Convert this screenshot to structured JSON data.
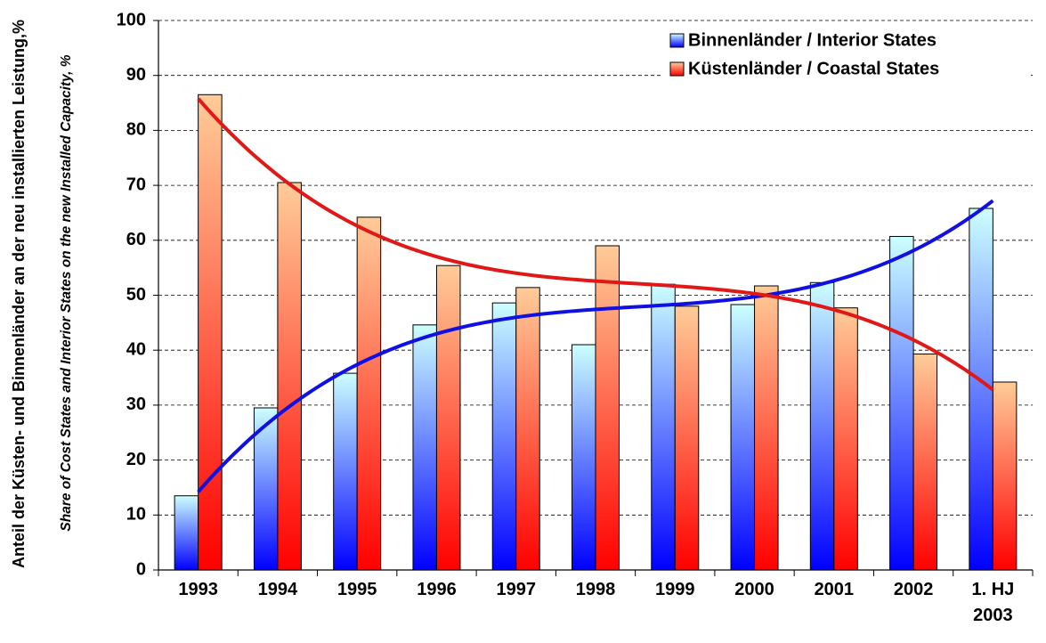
{
  "chart_data": {
    "type": "bar",
    "y_label": "Anteil der Küsten- und Binnenländer an der neu installierten Leistung,%",
    "y_sublabel": "Share of Cost States and Interior States on the new Installed Capacity, %",
    "categories": [
      "1993",
      "1994",
      "1995",
      "1996",
      "1997",
      "1998",
      "1999",
      "2000",
      "2001",
      "2002",
      "1. HJ 2003"
    ],
    "series": [
      {
        "name": "Binnenländer / Interior States",
        "color": "#0000ff",
        "gradient_top": "#ccffff",
        "trend_color": "#1010e0",
        "values": [
          13.5,
          29.5,
          35.8,
          44.6,
          48.6,
          41,
          52,
          48.3,
          52.3,
          60.7,
          65.8
        ]
      },
      {
        "name": "Küstenländer / Coastal States",
        "color": "#ff0000",
        "gradient_top": "#ffcc99",
        "trend_color": "#e01818",
        "values": [
          86.5,
          70.5,
          64.2,
          55.4,
          51.4,
          59,
          48,
          51.7,
          47.7,
          39.3,
          34.2
        ]
      }
    ],
    "trendline": {
      "type": "polynomial",
      "order": 3
    },
    "ylim": [
      0,
      100
    ],
    "yticks": [
      0,
      10,
      20,
      30,
      40,
      50,
      60,
      70,
      80,
      90,
      100
    ],
    "grid": true,
    "legend": "upper right"
  }
}
